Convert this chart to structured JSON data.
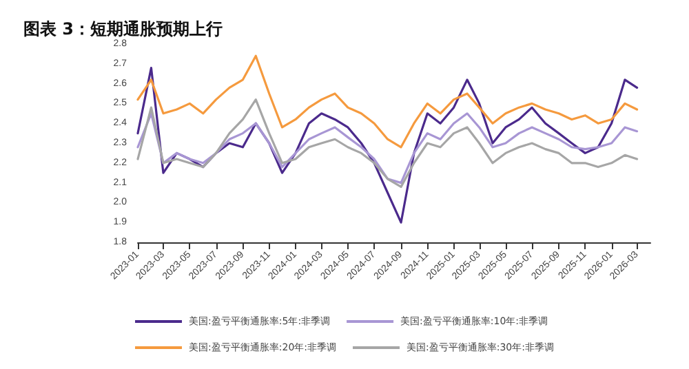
{
  "chart_data": {
    "type": "line",
    "title": "图表 3：短期通胀预期上行",
    "x": [
      "2023-01",
      "2023-02",
      "2023-03",
      "2023-04",
      "2023-05",
      "2023-06",
      "2023-07",
      "2023-08",
      "2023-09",
      "2023-10",
      "2023-11",
      "2023-12",
      "2024-01",
      "2024-02",
      "2024-03",
      "2024-04",
      "2024-05",
      "2024-06",
      "2024-07",
      "2024-08",
      "2024-09",
      "2024-10",
      "2024-11",
      "2024-12",
      "2025-01",
      "2025-02",
      "2025-03",
      "2025-04",
      "2025-05",
      "2025-06",
      "2025-07",
      "2025-08",
      "2025-09",
      "2025-10",
      "2025-11",
      "2025-12",
      "2026-01",
      "2026-02",
      "2026-03"
    ],
    "series": [
      {
        "name": "美国:盈亏平衡通胀率:5年:非季调",
        "color": "#4b2a8c",
        "values": [
          2.35,
          2.68,
          2.15,
          2.25,
          2.22,
          2.18,
          2.25,
          2.3,
          2.28,
          2.4,
          2.3,
          2.15,
          2.25,
          2.4,
          2.45,
          2.42,
          2.38,
          2.3,
          2.2,
          2.05,
          1.9,
          2.25,
          2.45,
          2.4,
          2.48,
          2.62,
          2.5,
          2.3,
          2.38,
          2.42,
          2.48,
          2.4,
          2.35,
          2.3,
          2.25,
          2.28,
          2.4,
          2.62,
          2.58
        ]
      },
      {
        "name": "美国:盈亏平衡通胀率:10年:非季调",
        "color": "#a896d4",
        "values": [
          2.28,
          2.45,
          2.2,
          2.25,
          2.22,
          2.2,
          2.25,
          2.32,
          2.35,
          2.4,
          2.3,
          2.18,
          2.25,
          2.32,
          2.35,
          2.38,
          2.33,
          2.28,
          2.22,
          2.12,
          2.1,
          2.25,
          2.35,
          2.32,
          2.4,
          2.45,
          2.38,
          2.28,
          2.3,
          2.35,
          2.38,
          2.35,
          2.32,
          2.28,
          2.27,
          2.28,
          2.3,
          2.38,
          2.36
        ]
      },
      {
        "name": "美国:盈亏平衡通胀率:20年:非季调",
        "color": "#f59a3e",
        "values": [
          2.52,
          2.62,
          2.45,
          2.47,
          2.5,
          2.45,
          2.52,
          2.58,
          2.62,
          2.74,
          2.55,
          2.38,
          2.42,
          2.48,
          2.52,
          2.55,
          2.48,
          2.45,
          2.4,
          2.32,
          2.28,
          2.4,
          2.5,
          2.45,
          2.52,
          2.55,
          2.48,
          2.4,
          2.45,
          2.48,
          2.5,
          2.47,
          2.45,
          2.42,
          2.44,
          2.4,
          2.42,
          2.5,
          2.47
        ]
      },
      {
        "name": "美国:盈亏平衡通胀率:30年:非季调",
        "color": "#a6a6a6",
        "values": [
          2.22,
          2.48,
          2.2,
          2.22,
          2.2,
          2.18,
          2.25,
          2.35,
          2.42,
          2.52,
          2.35,
          2.2,
          2.22,
          2.28,
          2.3,
          2.32,
          2.28,
          2.25,
          2.2,
          2.12,
          2.08,
          2.2,
          2.3,
          2.28,
          2.35,
          2.38,
          2.3,
          2.2,
          2.25,
          2.28,
          2.3,
          2.27,
          2.25,
          2.2,
          2.2,
          2.18,
          2.2,
          2.24,
          2.22
        ]
      }
    ],
    "xlim": [
      "2023-01",
      "2026-04"
    ],
    "xticks": [
      "2023-01",
      "2023-03",
      "2023-05",
      "2023-07",
      "2023-09",
      "2023-11",
      "2024-01",
      "2024-03",
      "2024-05",
      "2024-07",
      "2024-09",
      "2024-11",
      "2025-01",
      "2025-03",
      "2025-05",
      "2025-07",
      "2025-09",
      "2025-11",
      "2026-01",
      "2026-03"
    ],
    "ylim": [
      1.8,
      2.8
    ],
    "yticks": [
      1.8,
      1.9,
      {
        "value": 2,
        "label": "2.0"
      },
      2.1,
      2.2,
      2.3,
      2.4,
      2.5,
      2.6,
      2.7,
      2.8
    ],
    "grid": false,
    "legend": "bottom",
    "marker": "none",
    "line_style": "solid"
  }
}
